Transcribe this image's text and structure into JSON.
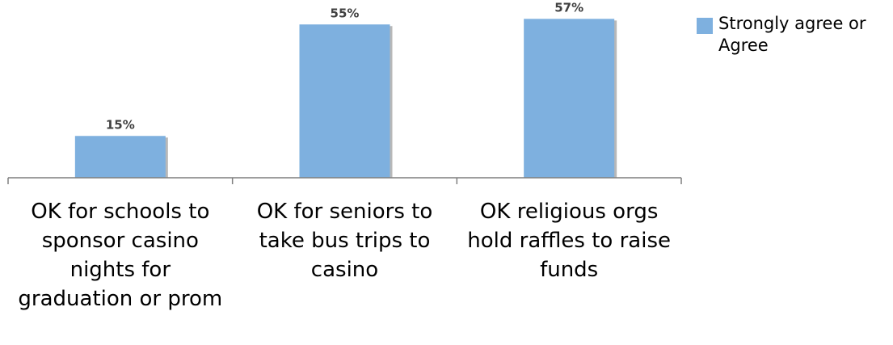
{
  "chart_data": {
    "type": "bar",
    "categories": [
      "OK for schools to sponsor casino nights for graduation or prom",
      "OK for seniors to take bus trips to casino",
      "OK religious orgs hold raffles to raise funds"
    ],
    "series": [
      {
        "name": "Strongly agree or Agree",
        "values": [
          15,
          55,
          57
        ]
      }
    ],
    "data_labels": [
      "15%",
      "55%",
      "57%"
    ],
    "value_unit": "%",
    "ylim": [
      0,
      60
    ],
    "grid": false,
    "legend_position": "top-right",
    "colors": {
      "bar": "#7eb0df",
      "bar_shadow": "#b8b8b8",
      "axis": "#7f7f7f"
    }
  }
}
